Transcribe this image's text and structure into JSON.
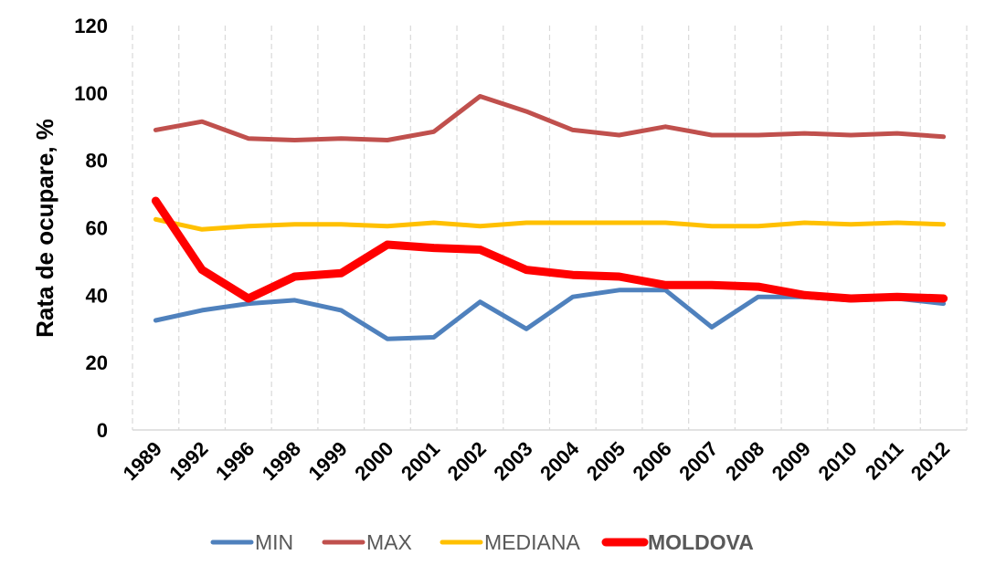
{
  "chart_data": {
    "type": "line",
    "title": "",
    "xlabel": "",
    "ylabel": "Rata de ocupare, %",
    "ylim": [
      0,
      120
    ],
    "yticks": [
      0,
      20,
      40,
      60,
      80,
      100,
      120
    ],
    "grid": "vertical dashed",
    "legend_position": "bottom",
    "categories": [
      "1989",
      "1992",
      "1996",
      "1998",
      "1999",
      "2000",
      "2001",
      "2002",
      "2003",
      "2004",
      "2005",
      "2006",
      "2007",
      "2008",
      "2009",
      "2010",
      "2011",
      "2012"
    ],
    "series": [
      {
        "name": "MIN",
        "color": "#4f81bd",
        "bold": false,
        "values": [
          32.5,
          35.5,
          37.5,
          38.5,
          35.5,
          27,
          27.5,
          38,
          30,
          39.5,
          41.5,
          41.5,
          30.5,
          39.5,
          39.5,
          38.5,
          39,
          37.5
        ]
      },
      {
        "name": "MAX",
        "color": "#c0504d",
        "bold": false,
        "values": [
          89,
          91.5,
          86.5,
          86,
          86.5,
          86,
          88.5,
          99,
          94.5,
          89,
          87.5,
          90,
          87.5,
          87.5,
          88,
          87.5,
          88,
          87
        ]
      },
      {
        "name": "MEDIANA",
        "color": "#ffc000",
        "bold": false,
        "values": [
          62.5,
          59.5,
          60.5,
          61,
          61,
          60.5,
          61.5,
          60.5,
          61.5,
          61.5,
          61.5,
          61.5,
          60.5,
          60.5,
          61.5,
          61,
          61.5,
          61
        ]
      },
      {
        "name": "MOLDOVA",
        "color": "#ff0000",
        "bold": true,
        "values": [
          68,
          47.5,
          39,
          45.5,
          46.5,
          55,
          54,
          53.5,
          47.5,
          46,
          45.5,
          43,
          43,
          42.5,
          40,
          39,
          39.5,
          39
        ]
      }
    ]
  }
}
